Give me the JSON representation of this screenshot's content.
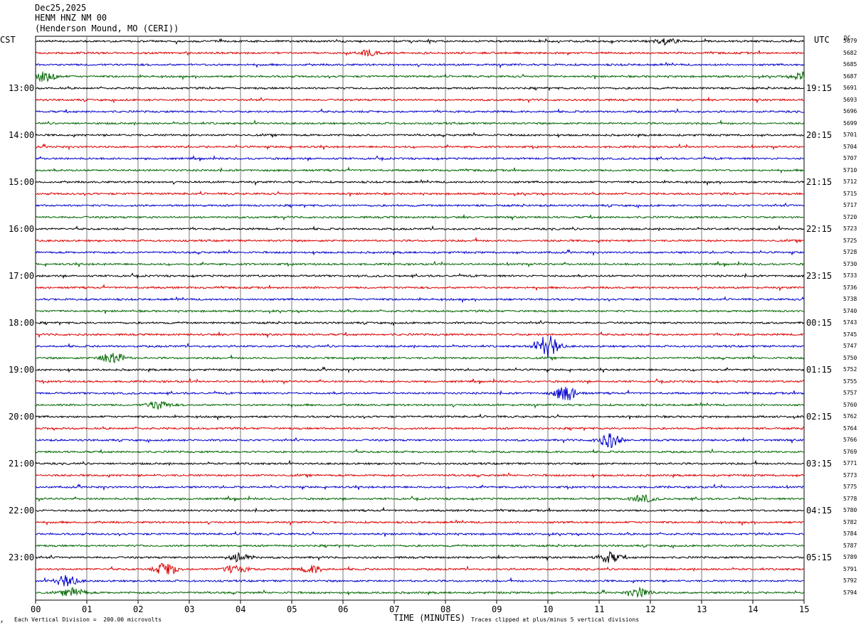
{
  "header": {
    "date": "Dec25,2025",
    "station": "HENM HNZ NM 00",
    "location": "(Henderson Mound, MO (CERI))"
  },
  "axis": {
    "left_zone": "CST",
    "right_zone": "UTC",
    "dc_label": "DC",
    "xlabel": "TIME (MINUTES)"
  },
  "footer": {
    "scale_note": "Each Vertical Division =  200.00 microvolts",
    "clip_note": "Traces clipped at plus/minus 5 vertical divisions"
  },
  "colors": {
    "grid": "#7a7a7a",
    "trace_cycle": [
      "#000000",
      "#dd0000",
      "#0000cc",
      "#006600"
    ]
  },
  "chart_data": {
    "type": "helicorder",
    "x_ticks": [
      "00",
      "01",
      "02",
      "03",
      "04",
      "05",
      "06",
      "07",
      "08",
      "09",
      "10",
      "11",
      "12",
      "13",
      "14",
      "15"
    ],
    "xlim": [
      0,
      15
    ],
    "left_hour_labels": [
      "13:00",
      "14:00",
      "15:00",
      "16:00",
      "17:00",
      "18:00",
      "19:00",
      "20:00",
      "21:00",
      "22:00",
      "23:00"
    ],
    "right_hour_labels": [
      "19:15",
      "20:15",
      "21:15",
      "22:15",
      "23:15",
      "00:15",
      "01:15",
      "02:15",
      "03:15",
      "04:15",
      "05:15"
    ],
    "dc_values": [
      "5679",
      "5682",
      "5685",
      "5687",
      "5691",
      "5693",
      "5696",
      "5699",
      "5701",
      "5704",
      "5707",
      "5710",
      "5712",
      "5715",
      "5717",
      "5720",
      "5723",
      "5725",
      "5728",
      "5730",
      "5733",
      "5736",
      "5738",
      "5740",
      "5743",
      "5745",
      "5747",
      "5750",
      "5752",
      "5755",
      "5757",
      "5760",
      "5762",
      "5764",
      "5766",
      "5769",
      "5771",
      "5773",
      "5775",
      "5778",
      "5780",
      "5782",
      "5784",
      "5787",
      "5789",
      "5791",
      "5792",
      "5794"
    ],
    "events": [
      {
        "trace": 0,
        "minute": 12.3,
        "amp": 4
      },
      {
        "trace": 1,
        "minute": 6.5,
        "amp": 4
      },
      {
        "trace": 3,
        "minute": 0.2,
        "amp": 7
      },
      {
        "trace": 3,
        "minute": 15.0,
        "amp": 6
      },
      {
        "trace": 26,
        "minute": 10.0,
        "amp": 16
      },
      {
        "trace": 27,
        "minute": 1.5,
        "amp": 9
      },
      {
        "trace": 30,
        "minute": 10.35,
        "amp": 11
      },
      {
        "trace": 31,
        "minute": 2.4,
        "amp": 6
      },
      {
        "trace": 34,
        "minute": 11.2,
        "amp": 10
      },
      {
        "trace": 39,
        "minute": 11.85,
        "amp": 5
      },
      {
        "trace": 44,
        "minute": 4.0,
        "amp": 6
      },
      {
        "trace": 44,
        "minute": 11.2,
        "amp": 7
      },
      {
        "trace": 45,
        "minute": 2.55,
        "amp": 9
      },
      {
        "trace": 45,
        "minute": 3.9,
        "amp": 6
      },
      {
        "trace": 45,
        "minute": 5.4,
        "amp": 5
      },
      {
        "trace": 46,
        "minute": 0.6,
        "amp": 8
      },
      {
        "trace": 47,
        "minute": 0.75,
        "amp": 6
      },
      {
        "trace": 47,
        "minute": 11.8,
        "amp": 6
      }
    ]
  }
}
